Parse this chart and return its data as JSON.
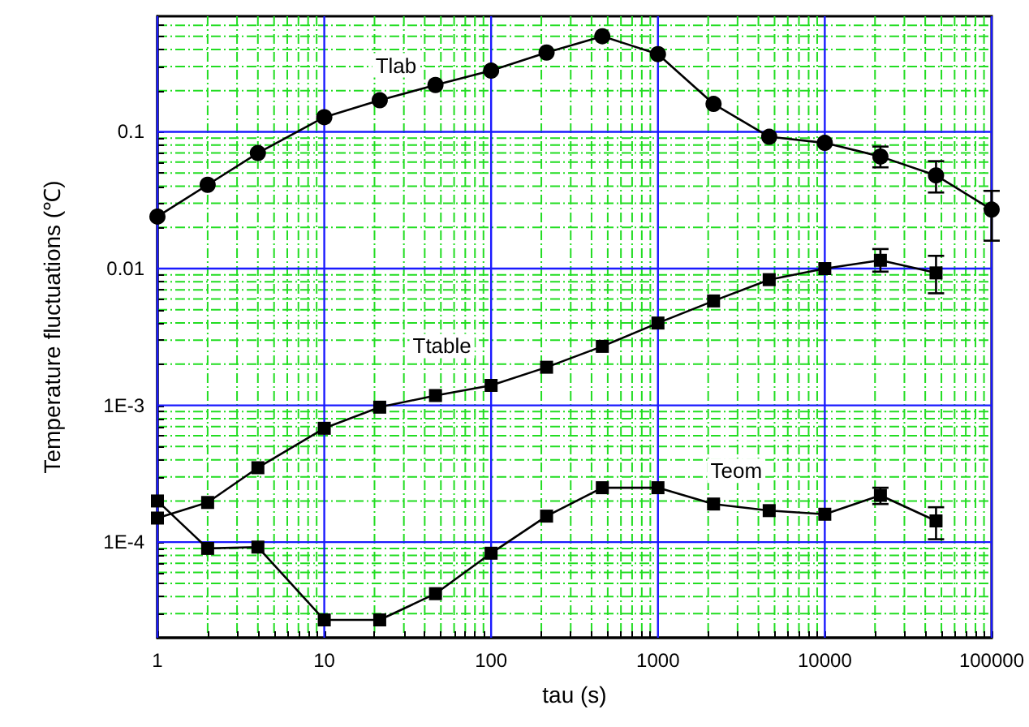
{
  "chart_data": {
    "type": "line",
    "xlabel": "tau (s)",
    "ylabel": "Temperature fluctuations (℃)",
    "log": "xy",
    "grid": true,
    "legend": false,
    "x": [
      1,
      2,
      4,
      10,
      21.5,
      46.4,
      100,
      215,
      464,
      1000,
      2154,
      4642,
      10000,
      21544,
      46416,
      100000
    ],
    "xlim": [
      1,
      100000
    ],
    "xticks": [
      1,
      {
        "value": 2,
        "label": null
      },
      {
        "value": 3,
        "label": null
      },
      {
        "value": 4,
        "label": null
      },
      {
        "value": 5,
        "label": null
      },
      {
        "value": 6,
        "label": null
      },
      {
        "value": 7,
        "label": null
      },
      {
        "value": 8,
        "label": null
      },
      {
        "value": 9,
        "label": null
      },
      10,
      {
        "value": 20,
        "label": null
      },
      {
        "value": 30,
        "label": null
      },
      {
        "value": 40,
        "label": null
      },
      {
        "value": 50,
        "label": null
      },
      {
        "value": 60,
        "label": null
      },
      {
        "value": 70,
        "label": null
      },
      {
        "value": 80,
        "label": null
      },
      {
        "value": 90,
        "label": null
      },
      100,
      {
        "value": 200,
        "label": null
      },
      {
        "value": 300,
        "label": null
      },
      {
        "value": 400,
        "label": null
      },
      {
        "value": 500,
        "label": null
      },
      {
        "value": 600,
        "label": null
      },
      {
        "value": 700,
        "label": null
      },
      {
        "value": 800,
        "label": null
      },
      {
        "value": 900,
        "label": null
      },
      1000,
      {
        "value": 2000,
        "label": null
      },
      {
        "value": 3000,
        "label": null
      },
      {
        "value": 4000,
        "label": null
      },
      {
        "value": 5000,
        "label": null
      },
      {
        "value": 6000,
        "label": null
      },
      {
        "value": 7000,
        "label": null
      },
      {
        "value": 8000,
        "label": null
      },
      {
        "value": 9000,
        "label": null
      },
      10000,
      {
        "value": 20000,
        "label": null
      },
      {
        "value": 30000,
        "label": null
      },
      {
        "value": 40000,
        "label": null
      },
      {
        "value": 50000,
        "label": null
      },
      {
        "value": 60000,
        "label": null
      },
      {
        "value": 70000,
        "label": null
      },
      {
        "value": 80000,
        "label": null
      },
      {
        "value": 90000,
        "label": null
      },
      100000
    ],
    "ylim": [
      2e-05,
      0.7
    ],
    "yticks": [
      {
        "value": 3e-05,
        "label": null
      },
      {
        "value": 4e-05,
        "label": null
      },
      {
        "value": 5e-05,
        "label": null
      },
      {
        "value": 6e-05,
        "label": null
      },
      {
        "value": 7e-05,
        "label": null
      },
      {
        "value": 8e-05,
        "label": null
      },
      {
        "value": 9e-05,
        "label": null
      },
      {
        "value": 0.0001,
        "label": "1E-4"
      },
      {
        "value": 0.0002,
        "label": null
      },
      {
        "value": 0.0003,
        "label": null
      },
      {
        "value": 0.0004,
        "label": null
      },
      {
        "value": 0.0005,
        "label": null
      },
      {
        "value": 0.0006,
        "label": null
      },
      {
        "value": 0.0007,
        "label": null
      },
      {
        "value": 0.0008,
        "label": null
      },
      {
        "value": 0.0009,
        "label": null
      },
      {
        "value": 0.001,
        "label": "1E-3"
      },
      {
        "value": 0.002,
        "label": null
      },
      {
        "value": 0.003,
        "label": null
      },
      {
        "value": 0.004,
        "label": null
      },
      {
        "value": 0.005,
        "label": null
      },
      {
        "value": 0.006,
        "label": null
      },
      {
        "value": 0.007,
        "label": null
      },
      {
        "value": 0.008,
        "label": null
      },
      {
        "value": 0.009,
        "label": null
      },
      0.01,
      {
        "value": 0.02,
        "label": null
      },
      {
        "value": 0.03,
        "label": null
      },
      {
        "value": 0.04,
        "label": null
      },
      {
        "value": 0.05,
        "label": null
      },
      {
        "value": 0.06,
        "label": null
      },
      {
        "value": 0.07,
        "label": null
      },
      {
        "value": 0.08,
        "label": null
      },
      {
        "value": 0.09,
        "label": null
      },
      0.1,
      {
        "value": 0.2,
        "label": null
      },
      {
        "value": 0.3,
        "label": null
      },
      {
        "value": 0.4,
        "label": null
      },
      {
        "value": 0.5,
        "label": null
      },
      {
        "value": 0.6,
        "label": null
      }
    ],
    "series": [
      {
        "name": "Tlab",
        "color": "#000000",
        "marker": "circle",
        "values": [
          0.024,
          0.041,
          0.07,
          0.128,
          0.17,
          0.22,
          0.28,
          0.38,
          0.5,
          0.37,
          0.16,
          0.092,
          0.083,
          0.066,
          0.048,
          0.027
        ],
        "errors": [
          null,
          null,
          null,
          null,
          null,
          null,
          null,
          null,
          null,
          null,
          null,
          null,
          null,
          [
            0.055,
            0.078
          ],
          [
            0.036,
            0.061
          ],
          [
            0.016,
            0.037
          ]
        ]
      },
      {
        "name": "Ttable",
        "color": "#000000",
        "marker": "square",
        "values": [
          0.00015,
          0.000195,
          0.00035,
          0.00068,
          0.00097,
          0.00118,
          0.0014,
          0.0019,
          0.0027,
          0.004,
          0.0058,
          0.0083,
          0.01,
          0.0115,
          0.0093,
          null
        ],
        "errors": [
          null,
          null,
          null,
          null,
          null,
          null,
          null,
          null,
          null,
          null,
          null,
          null,
          null,
          [
            0.0095,
            0.0139
          ],
          [
            0.0066,
            0.0124
          ],
          null
        ]
      },
      {
        "name": "Teom",
        "color": "#000000",
        "marker": "square",
        "values": [
          0.0002,
          9e-05,
          9.2e-05,
          2.7e-05,
          2.7e-05,
          4.2e-05,
          8.3e-05,
          0.000155,
          0.00025,
          0.00025,
          0.00019,
          0.00017,
          0.00016,
          0.00022,
          0.000143,
          null
        ],
        "errors": [
          null,
          null,
          null,
          null,
          null,
          null,
          null,
          null,
          null,
          null,
          null,
          null,
          null,
          [
            0.00019,
            0.00025
          ],
          [
            0.000105,
            0.00018
          ],
          null
        ]
      }
    ]
  }
}
